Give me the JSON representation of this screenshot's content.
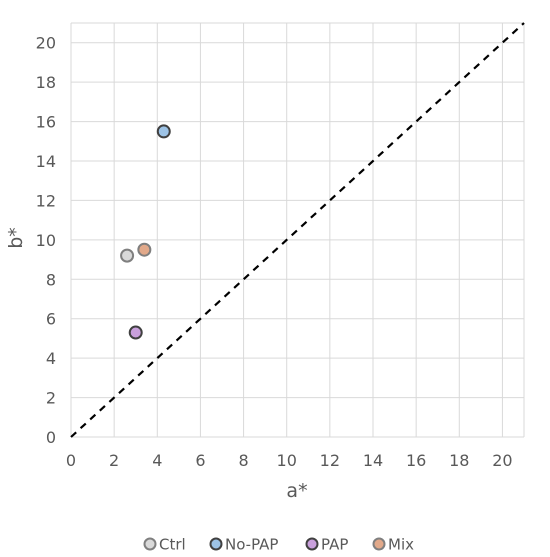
{
  "chart_data": {
    "type": "scatter",
    "xlabel": "a*",
    "ylabel": "b*",
    "xlim": [
      0,
      21
    ],
    "ylim": [
      0,
      21
    ],
    "xticks": [
      0,
      2,
      4,
      6,
      8,
      10,
      12,
      14,
      16,
      18,
      20
    ],
    "yticks": [
      0,
      2,
      4,
      6,
      8,
      10,
      12,
      14,
      16,
      18,
      20
    ],
    "grid": true,
    "reference_line": {
      "from": [
        0,
        0
      ],
      "to": [
        21,
        21
      ],
      "style": "dashed",
      "color": "#000000"
    },
    "legend_position": "bottom",
    "series": [
      {
        "name": "Ctrl",
        "x": [
          2.6
        ],
        "y": [
          9.2
        ],
        "fill": "#d9d9d9",
        "stroke": "#7f7f7f"
      },
      {
        "name": "No-PAP",
        "x": [
          4.3
        ],
        "y": [
          15.5
        ],
        "fill": "#9dc3e6",
        "stroke": "#404040"
      },
      {
        "name": "PAP",
        "x": [
          3.0
        ],
        "y": [
          5.3
        ],
        "fill": "#c9a0dc",
        "stroke": "#404040"
      },
      {
        "name": "Mix",
        "x": [
          3.4
        ],
        "y": [
          9.5
        ],
        "fill": "#e2a98a",
        "stroke": "#7f7f7f"
      }
    ]
  }
}
